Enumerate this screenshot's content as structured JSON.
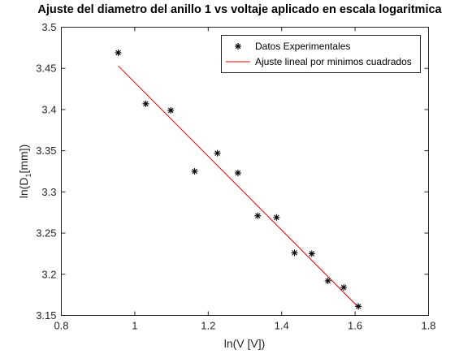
{
  "chart_data": {
    "type": "scatter",
    "title": "Ajuste del diametro del anillo 1 vs voltaje aplicado en escala logaritmica",
    "xlabel": "ln(V [V])",
    "ylabel_main": "ln(D",
    "ylabel_sub": "1",
    "ylabel_tail": "[mm])",
    "xlim": [
      0.8,
      1.8
    ],
    "ylim": [
      3.15,
      3.5
    ],
    "xticks": [
      0.8,
      1,
      1.2,
      1.4,
      1.6,
      1.8
    ],
    "xtick_labels": [
      "0.8",
      "1",
      "1.2",
      "1.4",
      "1.6",
      "1.8"
    ],
    "yticks": [
      3.15,
      3.2,
      3.25,
      3.3,
      3.35,
      3.4,
      3.45,
      3.5
    ],
    "ytick_labels": [
      "3.15",
      "3.2",
      "3.25",
      "3.3",
      "3.35",
      "3.4",
      "3.45",
      "3.5"
    ],
    "grid": false,
    "legend_position": "top-right",
    "series": [
      {
        "name": "Datos Experimentales",
        "marker": "asterisk",
        "color": "#000000",
        "x": [
          0.955,
          1.03,
          1.098,
          1.163,
          1.225,
          1.281,
          1.335,
          1.386,
          1.435,
          1.482,
          1.526,
          1.569,
          1.609
        ],
        "y": [
          3.469,
          3.407,
          3.399,
          3.325,
          3.347,
          3.323,
          3.271,
          3.269,
          3.226,
          3.225,
          3.192,
          3.184,
          3.161
        ]
      },
      {
        "name": "Ajuste lineal por minimos cuadrados",
        "type": "line",
        "color": "#e00000",
        "x": [
          0.955,
          1.609
        ],
        "y": [
          3.453,
          3.16
        ]
      }
    ]
  }
}
